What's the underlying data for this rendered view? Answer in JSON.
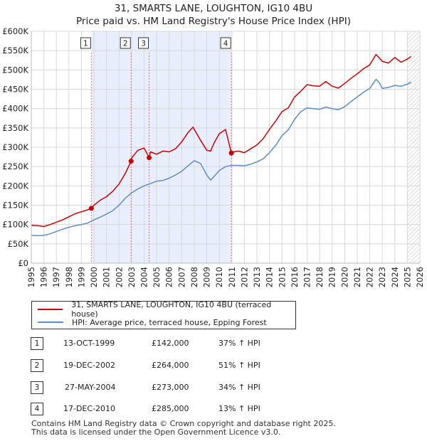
{
  "chart_data": {
    "type": "line",
    "title": "31, SMARTS LANE, LOUGHTON, IG10 4BU",
    "subtitle": "Price paid vs. HM Land Registry's House Price Index (HPI)",
    "xlim": [
      1995,
      2026
    ],
    "ylim": [
      0,
      600000
    ],
    "y_ticks": [
      {
        "value": 0,
        "label": "£0"
      },
      {
        "value": 50000,
        "label": "£50K"
      },
      {
        "value": 100000,
        "label": "£100K"
      },
      {
        "value": 150000,
        "label": "£150K"
      },
      {
        "value": 200000,
        "label": "£200K"
      },
      {
        "value": 250000,
        "label": "£250K"
      },
      {
        "value": 300000,
        "label": "£300K"
      },
      {
        "value": 350000,
        "label": "£350K"
      },
      {
        "value": 400000,
        "label": "£400K"
      },
      {
        "value": 450000,
        "label": "£450K"
      },
      {
        "value": 500000,
        "label": "£500K"
      },
      {
        "value": 550000,
        "label": "£550K"
      },
      {
        "value": 600000,
        "label": "£600K"
      }
    ],
    "x_ticks": [
      "1995",
      "1996",
      "1997",
      "1998",
      "1999",
      "2000",
      "2001",
      "2002",
      "2003",
      "2004",
      "2005",
      "2006",
      "2007",
      "2008",
      "2009",
      "2010",
      "2011",
      "2012",
      "2013",
      "2014",
      "2015",
      "2016",
      "2017",
      "2018",
      "2019",
      "2020",
      "2021",
      "2022",
      "2023",
      "2024",
      "2025",
      "2026"
    ],
    "colors": {
      "property": "#cc0000",
      "hpi": "#5b8ccc",
      "shade": "#e8eefb",
      "grid": "#d8d8d8",
      "marker_line": "#e07070"
    },
    "series": [
      {
        "name": "31, SMARTS LANE, LOUGHTON, IG10 4BU (terraced house)",
        "x": [
          1995.0,
          1995.5,
          1996.0,
          1996.5,
          1997.0,
          1997.5,
          1998.0,
          1998.5,
          1999.0,
          1999.5,
          1999.79,
          2000.0,
          2000.5,
          2001.0,
          2001.5,
          2002.0,
          2002.5,
          2002.96,
          2003.0,
          2003.5,
          2004.0,
          2004.4,
          2004.5,
          2005.0,
          2005.5,
          2006.0,
          2006.5,
          2007.0,
          2007.5,
          2007.9,
          2008.5,
          2009.0,
          2009.3,
          2009.6,
          2010.0,
          2010.5,
          2010.96,
          2011.0,
          2011.5,
          2012.0,
          2012.5,
          2013.0,
          2013.5,
          2014.0,
          2014.5,
          2015.0,
          2015.5,
          2016.0,
          2016.5,
          2017.0,
          2017.5,
          2018.0,
          2018.5,
          2019.0,
          2019.5,
          2020.0,
          2020.5,
          2021.0,
          2021.5,
          2022.0,
          2022.5,
          2022.8,
          2023.0,
          2023.5,
          2024.0,
          2024.5,
          2025.0,
          2025.3
        ],
        "values": [
          98000,
          97000,
          95000,
          100000,
          106000,
          112000,
          120000,
          128000,
          133000,
          138000,
          142000,
          150000,
          163000,
          172000,
          186000,
          205000,
          232000,
          264000,
          272000,
          292000,
          298000,
          273000,
          288000,
          282000,
          290000,
          288000,
          296000,
          314000,
          338000,
          352000,
          318000,
          292000,
          290000,
          312000,
          335000,
          346000,
          285000,
          287000,
          290000,
          286000,
          296000,
          306000,
          322000,
          346000,
          368000,
          392000,
          402000,
          430000,
          445000,
          462000,
          459000,
          458000,
          470000,
          458000,
          453000,
          465000,
          478000,
          490000,
          503000,
          513000,
          540000,
          530000,
          522000,
          518000,
          532000,
          520000,
          528000,
          535000
        ]
      },
      {
        "name": "HPI: Average price, terraced house, Epping Forest",
        "x": [
          1995.0,
          1995.5,
          1996.0,
          1996.5,
          1997.0,
          1997.5,
          1998.0,
          1998.5,
          1999.0,
          1999.5,
          2000.0,
          2000.5,
          2001.0,
          2001.5,
          2002.0,
          2002.5,
          2003.0,
          2003.5,
          2004.0,
          2004.5,
          2005.0,
          2005.5,
          2006.0,
          2006.5,
          2007.0,
          2007.5,
          2008.0,
          2008.5,
          2009.0,
          2009.3,
          2009.6,
          2010.0,
          2010.5,
          2011.0,
          2011.5,
          2012.0,
          2012.5,
          2013.0,
          2013.5,
          2014.0,
          2014.5,
          2015.0,
          2015.5,
          2016.0,
          2016.5,
          2017.0,
          2017.5,
          2018.0,
          2018.5,
          2019.0,
          2019.5,
          2020.0,
          2020.5,
          2021.0,
          2021.5,
          2022.0,
          2022.5,
          2022.8,
          2023.0,
          2023.5,
          2024.0,
          2024.5,
          2025.0,
          2025.3
        ],
        "values": [
          72000,
          71000,
          72000,
          76000,
          82000,
          88000,
          93000,
          97000,
          100000,
          104000,
          112000,
          119000,
          127000,
          136000,
          150000,
          168000,
          182000,
          192000,
          200000,
          206000,
          212000,
          214000,
          220000,
          228000,
          238000,
          252000,
          265000,
          258000,
          228000,
          215000,
          225000,
          240000,
          250000,
          253000,
          253000,
          252000,
          256000,
          262000,
          270000,
          286000,
          305000,
          330000,
          345000,
          372000,
          392000,
          402000,
          400000,
          398000,
          404000,
          400000,
          397000,
          405000,
          418000,
          430000,
          442000,
          452000,
          476000,
          465000,
          452000,
          455000,
          460000,
          458000,
          463000,
          468000
        ]
      }
    ],
    "sales": [
      {
        "n": "1",
        "x": 1999.79,
        "price": 142000
      },
      {
        "n": "2",
        "x": 2002.96,
        "price": 264000
      },
      {
        "n": "3",
        "x": 2004.4,
        "price": 273000
      },
      {
        "n": "4",
        "x": 2010.96,
        "price": 285000
      }
    ],
    "shaded_range": [
      1999.79,
      2010.96
    ],
    "hatched_from": 2025.0
  },
  "legend": {
    "property_label": "31, SMARTS LANE, LOUGHTON, IG10 4BU (terraced house)",
    "hpi_label": "HPI: Average price, terraced house, Epping Forest"
  },
  "transactions": [
    {
      "n": "1",
      "date": "13-OCT-1999",
      "price": "£142,000",
      "hpi": "37% ↑ HPI"
    },
    {
      "n": "2",
      "date": "19-DEC-2002",
      "price": "£264,000",
      "hpi": "51% ↑ HPI"
    },
    {
      "n": "3",
      "date": "27-MAY-2004",
      "price": "£273,000",
      "hpi": "34% ↑ HPI"
    },
    {
      "n": "4",
      "date": "17-DEC-2010",
      "price": "£285,000",
      "hpi": "13% ↑ HPI"
    }
  ],
  "footer": {
    "line1": "Contains HM Land Registry data © Crown copyright and database right 2025.",
    "line2": "This data is licensed under the Open Government Licence v3.0."
  }
}
